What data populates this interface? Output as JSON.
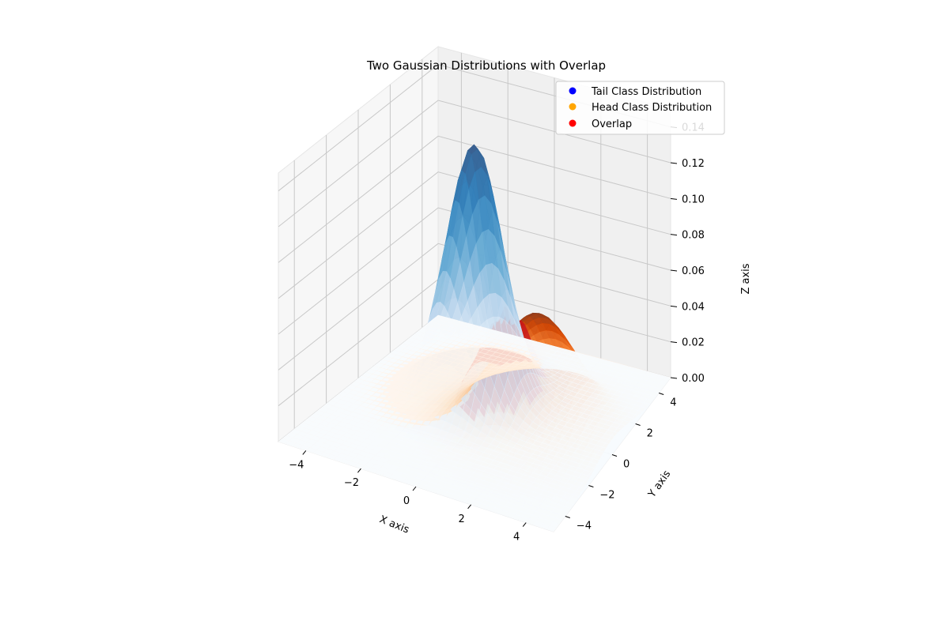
{
  "chart_data": {
    "type": "surface3d",
    "title": "Two Gaussian Distributions with Overlap",
    "xlabel": "X axis",
    "ylabel": "Y axis",
    "zlabel": "Z axis",
    "xlim": [
      -5,
      5
    ],
    "ylim": [
      -5,
      5
    ],
    "zlim": [
      0,
      0.15
    ],
    "x_ticks": [
      "−4",
      "−2",
      "0",
      "2",
      "4"
    ],
    "y_ticks": [
      "−4",
      "−2",
      "0",
      "2",
      "4"
    ],
    "z_ticks": [
      "0.00",
      "0.02",
      "0.04",
      "0.06",
      "0.08",
      "0.10",
      "0.12",
      "0.14"
    ],
    "grid": true,
    "legend_position": "upper-right",
    "series": [
      {
        "name": "Tail Class Distribution",
        "color": "#0000ff",
        "colormap": "Blues",
        "mean": [
          -1,
          1
        ],
        "sigma": 1.0,
        "peak": 0.14
      },
      {
        "name": "Head Class Distribution",
        "color": "#ffa500",
        "colormap": "Oranges",
        "mean": [
          2,
          0
        ],
        "sigma": 1.5,
        "peak": 0.065
      },
      {
        "name": "Overlap",
        "color": "#ff0000",
        "colormap": "Reds",
        "peak": 0.055
      }
    ]
  }
}
